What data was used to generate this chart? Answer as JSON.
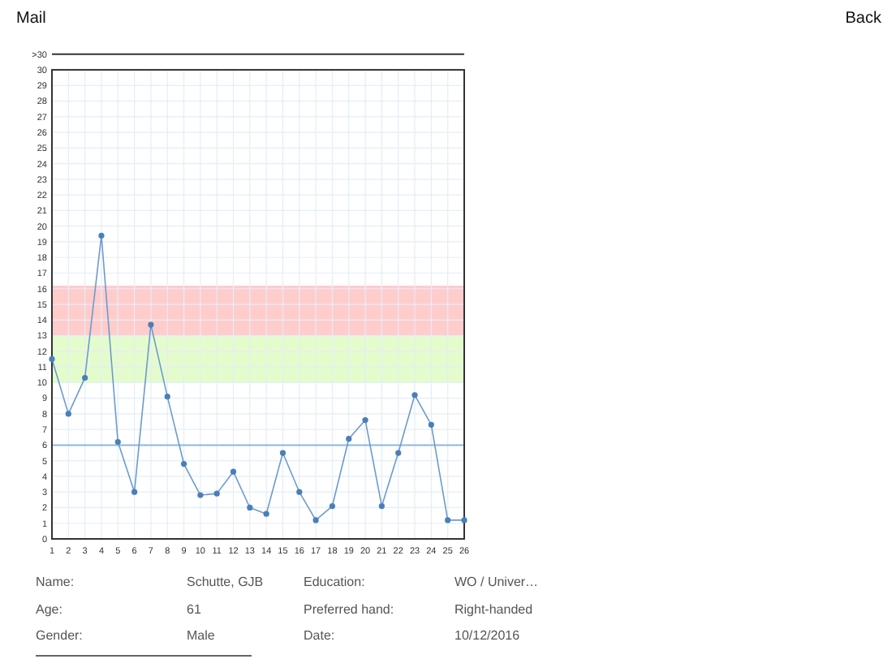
{
  "chart_data": {
    "type": "line",
    "x": [
      1,
      2,
      3,
      4,
      5,
      6,
      7,
      8,
      9,
      10,
      11,
      12,
      13,
      14,
      15,
      16,
      17,
      18,
      19,
      20,
      21,
      22,
      23,
      24,
      25,
      26
    ],
    "series": [
      {
        "color": "#6a9bd0",
        "values": [
          11.5,
          8,
          10.3,
          19.4,
          6.2,
          3.0,
          13.7,
          9.1,
          4.8,
          2.8,
          2.9,
          4.3,
          2.0,
          1.6,
          5.5,
          3.0,
          1.2,
          2.1,
          6.4,
          7.6,
          2.1,
          5.5,
          9.2,
          7.3,
          1.2,
          1.2
        ]
      }
    ],
    "xlim": [
      1,
      26
    ],
    "xticks": [
      1,
      2,
      3,
      4,
      5,
      6,
      7,
      8,
      9,
      10,
      11,
      12,
      13,
      14,
      15,
      16,
      17,
      18,
      19,
      20,
      21,
      22,
      23,
      24,
      25,
      26
    ],
    "ylim": [
      0,
      31
    ],
    "yticks": [
      0,
      1,
      2,
      3,
      4,
      5,
      6,
      7,
      8,
      9,
      10,
      11,
      12,
      13,
      14,
      15,
      16,
      17,
      18,
      19,
      20,
      21,
      22,
      23,
      24,
      25,
      26,
      27,
      28,
      29,
      30,
      {
        "value": 31,
        "label": ">30"
      }
    ],
    "grid": true,
    "marker": "circle",
    "line_style": "solid",
    "bands": [
      {
        "axis": "y",
        "from": 10,
        "to": 13,
        "color": "#e4fccc"
      },
      {
        "axis": "y",
        "from": 13,
        "to": 16.2,
        "color": "#ffcccc"
      }
    ],
    "ref_lines": [
      {
        "axis": "y",
        "value": 6,
        "color": "#8fb8de"
      }
    ],
    "annotations": [
      "Mail",
      "Back",
      "Name:",
      "Schutte, GJB",
      "Education:",
      "WO / Univer…",
      "Age:",
      "61",
      "Preferred hand:",
      "Right-handed",
      "Gender:",
      "Male",
      "Date:",
      "10/12/2016"
    ]
  }
}
